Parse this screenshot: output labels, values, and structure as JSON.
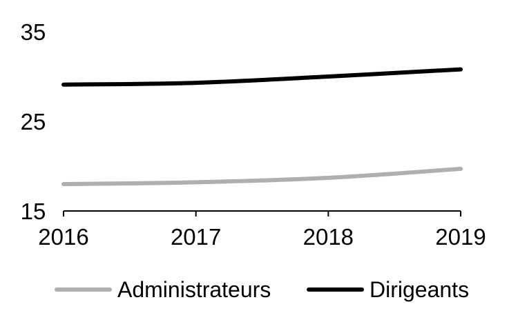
{
  "chart_data": {
    "type": "line",
    "title": "",
    "xlabel": "",
    "ylabel": "",
    "x": [
      "2016",
      "2017",
      "2018",
      "2019"
    ],
    "ylim": [
      15,
      35
    ],
    "yticks": [
      "15",
      "25",
      "35"
    ],
    "grid": false,
    "legend_position": "bottom",
    "series": [
      {
        "name": "Administrateurs",
        "color": "#b0aeae",
        "values": [
          18.0,
          18.2,
          18.7,
          19.7
        ]
      },
      {
        "name": "Dirigeants",
        "color": "#000000",
        "values": [
          29.1,
          29.3,
          30.0,
          30.8
        ]
      }
    ]
  }
}
